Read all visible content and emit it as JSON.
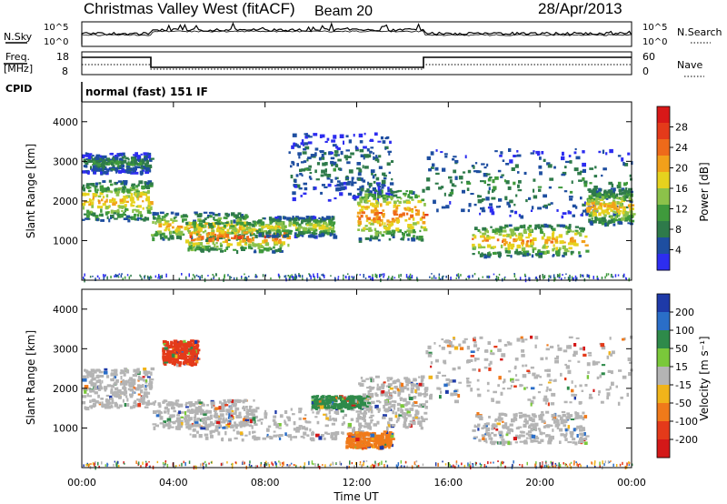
{
  "header": {
    "title": "Christmas Valley West (fitACF)",
    "beam": "Beam 20",
    "date": "28/Apr/2013"
  },
  "nsky": {
    "label": "N.Sky",
    "left_ticks": [
      "10^5",
      "10^0"
    ],
    "right_ticks": [
      "10^5",
      "10^0"
    ],
    "right_label": "N.Search",
    "right_label_style": "dotted"
  },
  "freq": {
    "label_line1": "Freq.",
    "label_line2": "[MHz]",
    "left_ticks": [
      "18",
      "8"
    ],
    "right_ticks": [
      "60",
      "0"
    ],
    "right_label": "Nave",
    "right_label_style": "dotted"
  },
  "cpid": {
    "label": "CPID",
    "text": "normal (fast) 151 IF"
  },
  "chart_data": [
    {
      "type": "heatmap",
      "panel": "power",
      "ylabel": "Slant Range [km]",
      "y_ticks": [
        "1000",
        "2000",
        "3000",
        "4000"
      ],
      "ylim": [
        0,
        4500
      ],
      "xlim_hours": [
        0,
        24
      ],
      "colorbar": {
        "label": "Power [dB]",
        "ticks": [
          "4",
          "8",
          "12",
          "16",
          "20",
          "24",
          "28"
        ],
        "colors": [
          "#2d2df0",
          "#1e4ea0",
          "#2e7a4a",
          "#3f9a3c",
          "#8cc24a",
          "#e6d21e",
          "#f2a01a",
          "#ee6a1a",
          "#e43a1a",
          "#d81818"
        ]
      },
      "echo_bands": [
        {
          "t": [
            0.0,
            3.0
          ],
          "r": [
            1500,
            2500
          ],
          "peak_dB": 24
        },
        {
          "t": [
            0.0,
            3.0
          ],
          "r": [
            2700,
            3200
          ],
          "peak_dB": 12
        },
        {
          "t": [
            3.0,
            7.5
          ],
          "r": [
            1000,
            1700
          ],
          "peak_dB": 24
        },
        {
          "t": [
            4.5,
            9.0
          ],
          "r": [
            700,
            1500
          ],
          "peak_dB": 28
        },
        {
          "t": [
            7.5,
            11.0
          ],
          "r": [
            1100,
            1600
          ],
          "peak_dB": 20
        },
        {
          "t": [
            9.0,
            13.5
          ],
          "r": [
            2000,
            3700
          ],
          "peak_dB": 10
        },
        {
          "t": [
            12.0,
            15.0
          ],
          "r": [
            1000,
            2300
          ],
          "peak_dB": 28
        },
        {
          "t": [
            15.0,
            24.0
          ],
          "r": [
            1600,
            3300
          ],
          "peak_dB": 12
        },
        {
          "t": [
            17.0,
            22.0
          ],
          "r": [
            600,
            1400
          ],
          "peak_dB": 26
        },
        {
          "t": [
            22.0,
            24.0
          ],
          "r": [
            1400,
            2300
          ],
          "peak_dB": 24
        }
      ]
    },
    {
      "type": "heatmap",
      "panel": "velocity",
      "ylabel": "Slant Range [km]",
      "y_ticks": [
        "1000",
        "2000",
        "3000",
        "4000"
      ],
      "ylim": [
        0,
        4500
      ],
      "xlabel": "Time UT",
      "x_ticks": [
        "00:00",
        "04:00",
        "08:00",
        "12:00",
        "16:00",
        "20:00",
        "00:00"
      ],
      "xlim_hours": [
        0,
        24
      ],
      "colorbar": {
        "label": "Velocity [m s⁻¹]",
        "ticks": [
          "200",
          "100",
          "50",
          "15",
          "-15",
          "-50",
          "-100",
          "-200"
        ],
        "colors": [
          "#1e3aa8",
          "#2a6ec8",
          "#2e8a4a",
          "#7ac83a",
          "#b4b4b4",
          "#f0b41a",
          "#f07a1a",
          "#e43a1a",
          "#d41818"
        ]
      },
      "echo_bands": [
        {
          "t": [
            0.0,
            3.0
          ],
          "r": [
            1500,
            2500
          ],
          "velocity": 0
        },
        {
          "t": [
            3.0,
            7.5
          ],
          "r": [
            1000,
            1700
          ],
          "velocity": 0
        },
        {
          "t": [
            4.5,
            12.5
          ],
          "r": [
            700,
            1500
          ],
          "velocity": 0
        },
        {
          "t": [
            10.0,
            12.5
          ],
          "r": [
            1500,
            1800
          ],
          "velocity": 60
        },
        {
          "t": [
            11.5,
            13.5
          ],
          "r": [
            500,
            900
          ],
          "velocity": -80
        },
        {
          "t": [
            12.0,
            15.0
          ],
          "r": [
            1000,
            2300
          ],
          "velocity": 0
        },
        {
          "t": [
            15.0,
            24.0
          ],
          "r": [
            1600,
            3300
          ],
          "velocity": 0
        },
        {
          "t": [
            17.0,
            22.0
          ],
          "r": [
            600,
            1400
          ],
          "velocity": 0
        },
        {
          "t": [
            3.5,
            5.0
          ],
          "r": [
            2600,
            3200
          ],
          "velocity": -120
        }
      ]
    }
  ]
}
